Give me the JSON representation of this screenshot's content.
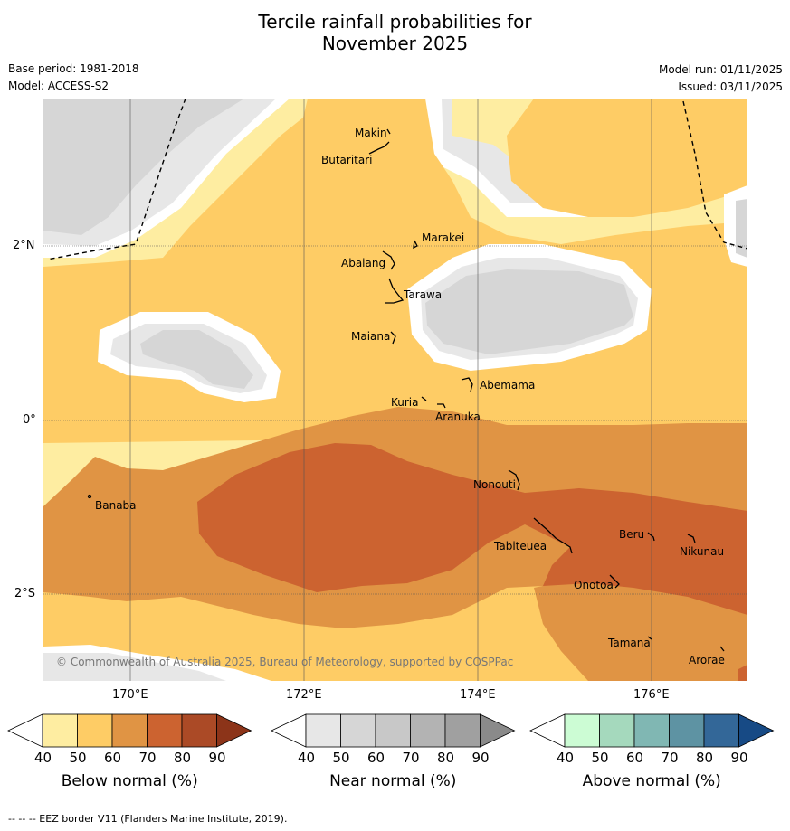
{
  "title_line1": "Tercile rainfall probabilities for",
  "title_line2": "November 2025",
  "base_period": "Base period: 1981-2018",
  "model": "Model: ACCESS-S2",
  "model_run": "Model run: 01/11/2025",
  "issued": "Issued: 03/11/2025",
  "copyright": "© Commonwealth of Australia 2025, Bureau of Meteorology, supported by COSPPac",
  "footer": "--  --  -- EEZ border V11 (Flanders Marine Institute, 2019).",
  "axes": {
    "lat_labels": [
      "2°N",
      "0°",
      "2°S"
    ],
    "lon_labels": [
      "170°E",
      "172°E",
      "174°E",
      "176°E"
    ]
  },
  "places": [
    "Makin",
    "Butaritari",
    "Marakei",
    "Abaiang",
    "Tarawa",
    "Maiana",
    "Abemama",
    "Kuria",
    "Aranuka",
    "Banaba",
    "Nonouti",
    "Tabiteuea",
    "Beru",
    "Nikunau",
    "Onotoa",
    "Tamana",
    "Arorae"
  ],
  "colorbars": [
    {
      "name": "below",
      "title": "Below normal (%)",
      "ticks": [
        "40",
        "50",
        "60",
        "70",
        "80",
        "90"
      ],
      "colors": [
        "#ffffff",
        "#feeda1",
        "#fecc65",
        "#e09444",
        "#cc6330",
        "#ab4a26",
        "#8c3419"
      ]
    },
    {
      "name": "near",
      "title": "Near normal (%)",
      "ticks": [
        "40",
        "50",
        "60",
        "70",
        "80",
        "90"
      ],
      "colors": [
        "#ffffff",
        "#e7e7e7",
        "#d6d6d6",
        "#c8c8c8",
        "#b3b3b3",
        "#a0a0a0",
        "#8a8a8a"
      ]
    },
    {
      "name": "above",
      "title": "Above normal (%)",
      "ticks": [
        "40",
        "50",
        "60",
        "70",
        "80",
        "90"
      ],
      "colors": [
        "#ffffff",
        "#ccfcd4",
        "#a5d9bd",
        "#80b7b3",
        "#5e93a3",
        "#336798",
        "#174a85"
      ]
    }
  ],
  "colors": {
    "white": "#ffffff",
    "below_50": "#feeda1",
    "below_60": "#fecc65",
    "below_70": "#e09444",
    "below_80": "#cc6330",
    "near_50": "#e7e7e7",
    "near_60": "#d6d6d6"
  }
}
